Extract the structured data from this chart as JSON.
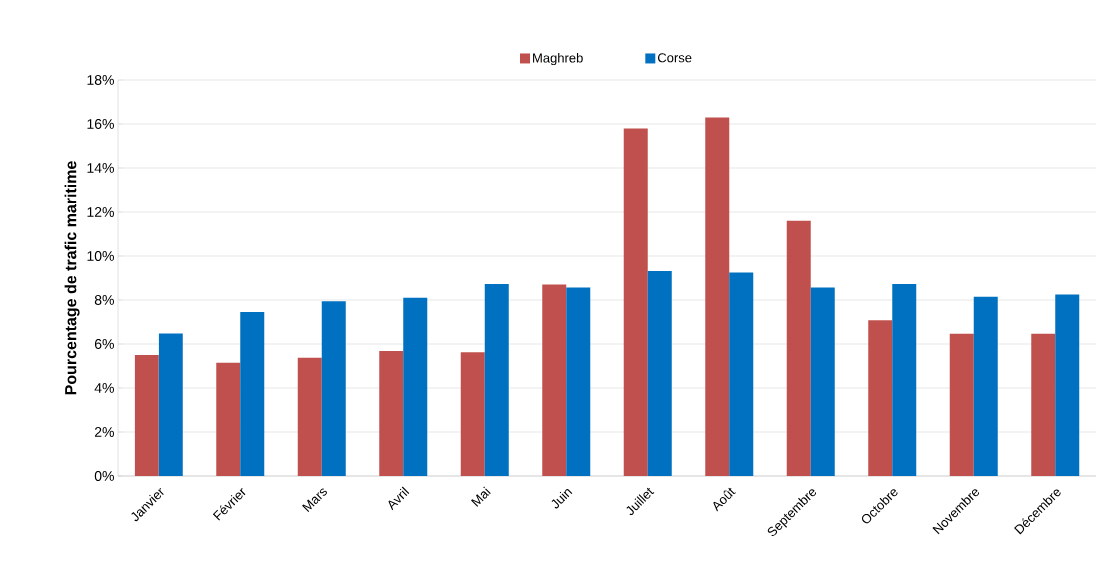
{
  "chart_data": {
    "type": "bar",
    "ylabel": "Pourcentage de trafic maritime",
    "categories": [
      "Janvier",
      "Février",
      "Mars",
      "Avril",
      "Mai",
      "Juin",
      "Juillet",
      "Août",
      "Septembre",
      "Octobre",
      "Novembre",
      "Décembre"
    ],
    "series": [
      {
        "name": "Maghreb",
        "color": "#c0504d",
        "values": [
          5.5,
          5.15,
          5.37,
          5.68,
          5.63,
          8.7,
          15.8,
          16.3,
          11.6,
          7.08,
          6.46,
          6.46
        ]
      },
      {
        "name": "Corse",
        "color": "#0070c0",
        "values": [
          6.48,
          7.45,
          7.94,
          8.1,
          8.73,
          8.57,
          9.32,
          9.25,
          8.57,
          8.73,
          8.15,
          8.25
        ]
      }
    ],
    "ylim": [
      0,
      18
    ],
    "yticks": [
      {
        "value": 0,
        "label": "0%"
      },
      {
        "value": 2,
        "label": "2%"
      },
      {
        "value": 4,
        "label": "4%"
      },
      {
        "value": 6,
        "label": "6%"
      },
      {
        "value": 8,
        "label": "8%"
      },
      {
        "value": 10,
        "label": "10%"
      },
      {
        "value": 12,
        "label": "12%"
      },
      {
        "value": 14,
        "label": "14%"
      },
      {
        "value": 16,
        "label": "16%"
      },
      {
        "value": 18,
        "label": "18%"
      }
    ],
    "grid": "y",
    "legend": "top"
  }
}
